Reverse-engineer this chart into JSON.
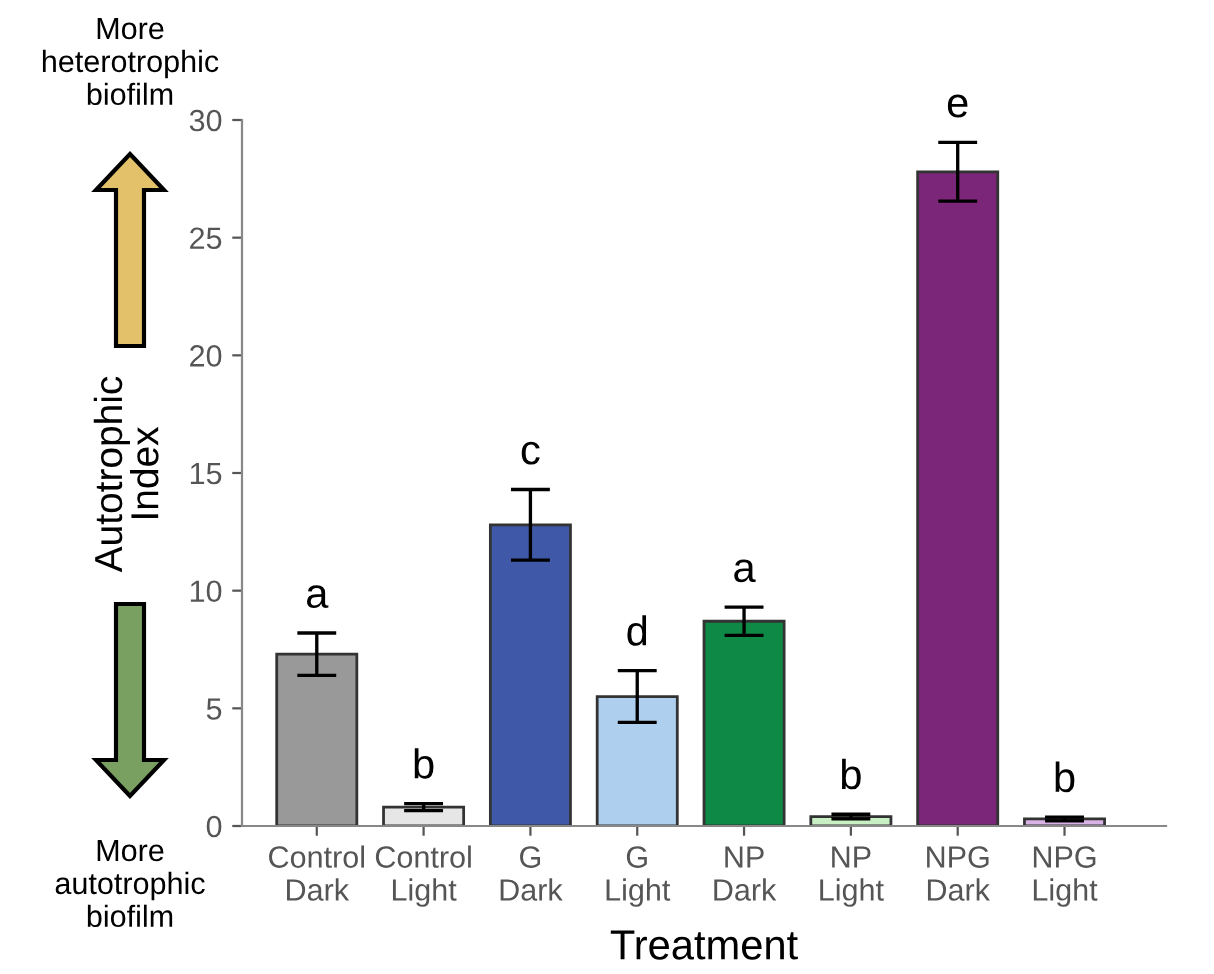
{
  "chart_data": {
    "type": "bar",
    "categories": [
      "Control\nDark",
      "Control\nLight",
      "G\nDark",
      "G\nLight",
      "NP\nDark",
      "NP\nLight",
      "NPG\nDark",
      "NPG\nLight"
    ],
    "values": [
      7.3,
      0.8,
      12.8,
      5.5,
      8.7,
      0.4,
      27.8,
      0.3
    ],
    "errors": [
      0.9,
      0.15,
      1.5,
      1.1,
      0.6,
      0.1,
      1.25,
      0.08
    ],
    "colors": [
      "#999999",
      "#e6e6e6",
      "#3f58a8",
      "#aecfee",
      "#0e8a46",
      "#c9f0c4",
      "#7b2679",
      "#d9b3e6"
    ],
    "value_labels": [
      "a",
      "b",
      "c",
      "d",
      "a",
      "b",
      "e",
      "b"
    ],
    "xlabel": "Treatment",
    "ylabel": "Autotrophic\nIndex",
    "ylim": [
      0,
      30
    ],
    "yticks": [
      0,
      5,
      10,
      15,
      20,
      25,
      30
    ],
    "annotations": [
      "More\nheterotrophic\nbiofilm",
      "More\nautotrophic\nbiofilm"
    ],
    "grid": false,
    "legend": false
  }
}
